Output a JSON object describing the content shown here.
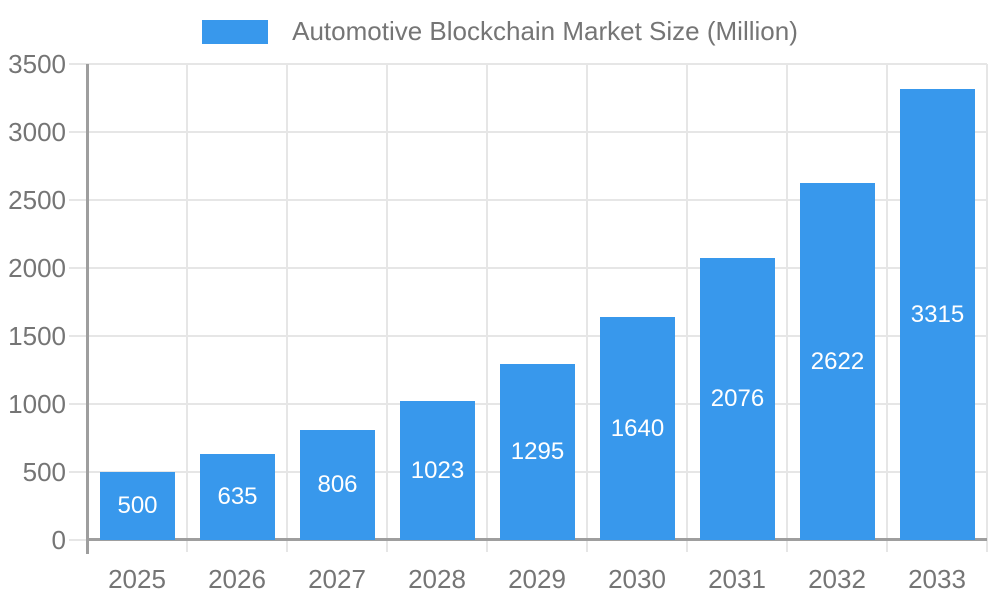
{
  "legend": {
    "label": "Automotive Blockchain Market Size (Million)"
  },
  "chart_data": {
    "type": "bar",
    "title": "Automotive Blockchain Market Size (Million)",
    "categories": [
      "2025",
      "2026",
      "2027",
      "2028",
      "2029",
      "2030",
      "2031",
      "2032",
      "2033"
    ],
    "values": [
      500,
      635,
      806,
      1023,
      1295,
      1640,
      2076,
      2622,
      3315
    ],
    "series_name": "Automotive Blockchain Market Size (Million)",
    "xlabel": "",
    "ylabel": "",
    "ylim": [
      0,
      3500
    ],
    "yticks": [
      0,
      500,
      1000,
      1500,
      2000,
      2500,
      3000,
      3500
    ],
    "grid": true,
    "legend_position": "top-center",
    "value_label_position": "inside-center",
    "colors": {
      "bar": "#3898EC",
      "value_label": "#FFFFFF",
      "axis_text": "#757575",
      "axis_line": "#9E9E9E",
      "gridline": "#E6E6E6",
      "background": "#FFFFFF"
    }
  }
}
